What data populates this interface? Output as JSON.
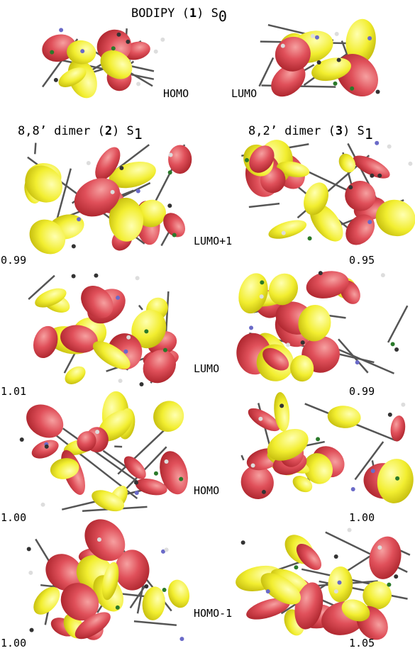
{
  "header": {
    "title": {
      "text": "BODIPY (",
      "bold": "1",
      "after": ") S",
      "sub": "0"
    },
    "homo": "HOMO",
    "lumo": "LUMO"
  },
  "columns": [
    {
      "text": "8,8’ dimer (",
      "bold": "2",
      "after": ") S",
      "sub": "1"
    },
    {
      "text": "8,2’ dimer (",
      "bold": "3",
      "after": ") S",
      "sub": "1"
    }
  ],
  "rows": [
    {
      "label": "LUMO+1",
      "left": "0.99",
      "right": "0.95"
    },
    {
      "label": "LUMO",
      "left": "1.01",
      "right": "0.99"
    },
    {
      "label": "HOMO",
      "left": "1.00",
      "right": "1.00"
    },
    {
      "label": "HOMO-1",
      "left": "1.00",
      "right": "1.05"
    }
  ]
}
